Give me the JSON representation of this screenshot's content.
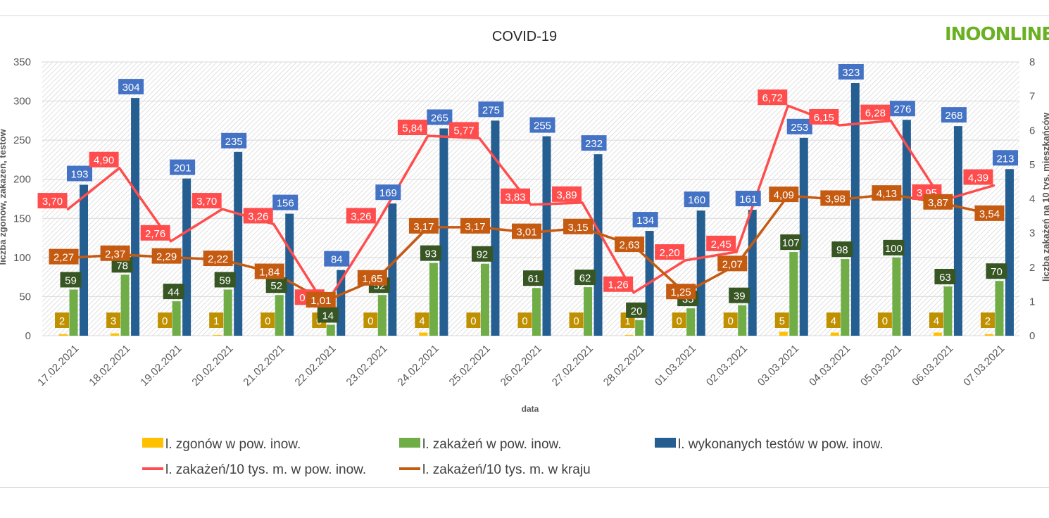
{
  "chart_data": {
    "type": "bar",
    "title": "COVID-19",
    "xlabel": "data",
    "ylabel": "liczba zgonów, zakażeń, testów",
    "y2label": "liczba zakażeń na 10 tys. mieszkańców",
    "ylim": [
      0,
      350
    ],
    "y2lim": [
      0,
      8
    ],
    "yticks": [
      "0",
      "50",
      "100",
      "150",
      "200",
      "250",
      "300",
      "350"
    ],
    "y2ticks": [
      "0",
      "1",
      "2",
      "3",
      "4",
      "5",
      "6",
      "7",
      "8"
    ],
    "categories": [
      "17.02.2021",
      "18.02.2021",
      "19.02.2021",
      "20.02.2021",
      "21.02.2021",
      "22.02.2021",
      "23.02.2021",
      "24.02.2021",
      "25.02.2021",
      "26.02.2021",
      "27.02.2021",
      "28.02.2021",
      "01.03.2021",
      "02.03.2021",
      "03.03.2021",
      "04.03.2021",
      "05.03.2021",
      "06.03.2021",
      "07.03.2021"
    ],
    "series": [
      {
        "name": "l. zgonów w pow. inow.",
        "kind": "bar",
        "axis": "left",
        "color": "#ffc000",
        "label_bg": "#bf9000",
        "values": [
          2,
          3,
          0,
          1,
          0,
          0,
          0,
          4,
          0,
          0,
          0,
          1,
          0,
          0,
          5,
          4,
          0,
          4,
          2
        ]
      },
      {
        "name": "l. zakażeń w pow. inow.",
        "kind": "bar",
        "axis": "left",
        "color": "#70ad47",
        "label_bg": "#375623",
        "values": [
          59,
          78,
          44,
          59,
          52,
          14,
          52,
          93,
          92,
          61,
          62,
          20,
          35,
          39,
          107,
          98,
          100,
          63,
          70
        ]
      },
      {
        "name": "l. wykonanych testów w pow. inow.",
        "kind": "bar",
        "axis": "left",
        "color": "#255e91",
        "label_bg": "#4472c4",
        "values": [
          193,
          304,
          201,
          235,
          156,
          84,
          169,
          265,
          275,
          255,
          232,
          134,
          160,
          161,
          253,
          323,
          276,
          268,
          213
        ]
      },
      {
        "name": "l. zakażeń/10 tys. m. w pow. inow.",
        "kind": "line",
        "axis": "right",
        "color": "#ff4d4d",
        "label_bg": "#ff4d4d",
        "values": [
          3.7,
          4.9,
          2.76,
          3.7,
          3.26,
          0.88,
          3.26,
          5.84,
          5.77,
          3.83,
          3.89,
          1.26,
          2.2,
          2.45,
          6.72,
          6.15,
          6.28,
          3.95,
          4.39
        ],
        "labels": [
          "3,70",
          "4,90",
          "2,76",
          "3,70",
          "3,26",
          "0,88",
          "3,26",
          "5,84",
          "5,77",
          "3,83",
          "3,89",
          "1,26",
          "2,20",
          "2,45",
          "6,72",
          "6,15",
          "6,28",
          "3,95",
          "4,39"
        ]
      },
      {
        "name": "l. zakażeń/10 tys. m. w kraju",
        "kind": "line",
        "axis": "right",
        "color": "#c55a11",
        "label_bg": "#c55a11",
        "values": [
          2.27,
          2.37,
          2.29,
          2.22,
          1.84,
          1.01,
          1.65,
          3.17,
          3.17,
          3.01,
          3.15,
          2.63,
          1.25,
          2.07,
          4.09,
          3.98,
          4.13,
          3.87,
          3.54
        ],
        "labels": [
          "2,27",
          "2,37",
          "2,29",
          "2,22",
          "1,84",
          "1,01",
          "1,65",
          "3,17",
          "3,17",
          "3,01",
          "3,15",
          "2,63",
          "1,25",
          "2,07",
          "4,09",
          "3,98",
          "4,13",
          "3,87",
          "3,54"
        ]
      }
    ],
    "grid": true,
    "legend": "bottom"
  },
  "logo": {
    "text": "INOONLINE"
  }
}
